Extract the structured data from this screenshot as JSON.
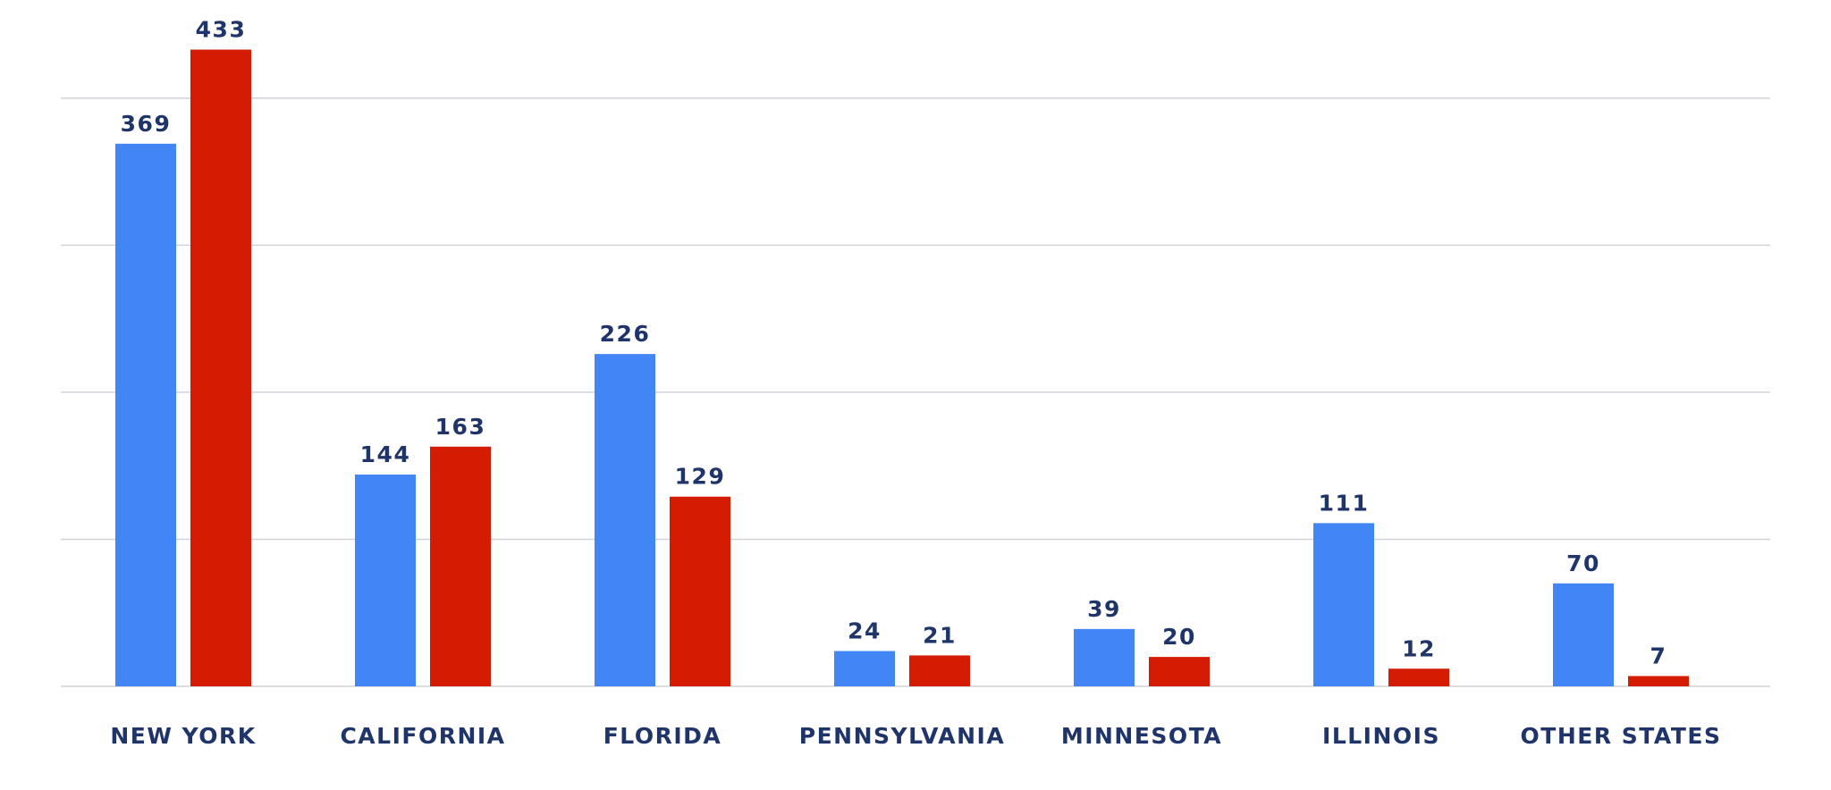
{
  "chart_data": {
    "type": "bar",
    "categories": [
      "NEW YORK",
      "CALIFORNIA",
      "FLORIDA",
      "PENNSYLVANIA",
      "MINNESOTA",
      "ILLINOIS",
      "OTHER STATES"
    ],
    "series": [
      {
        "color": "#4285f4",
        "values": [
          369,
          144,
          226,
          24,
          39,
          111,
          70
        ]
      },
      {
        "color": "#d41c03",
        "values": [
          433,
          163,
          129,
          21,
          20,
          12,
          7
        ]
      }
    ],
    "ylim": [
      0,
      440
    ],
    "yticks": [
      0,
      100,
      200,
      300,
      400
    ],
    "grid": true
  }
}
